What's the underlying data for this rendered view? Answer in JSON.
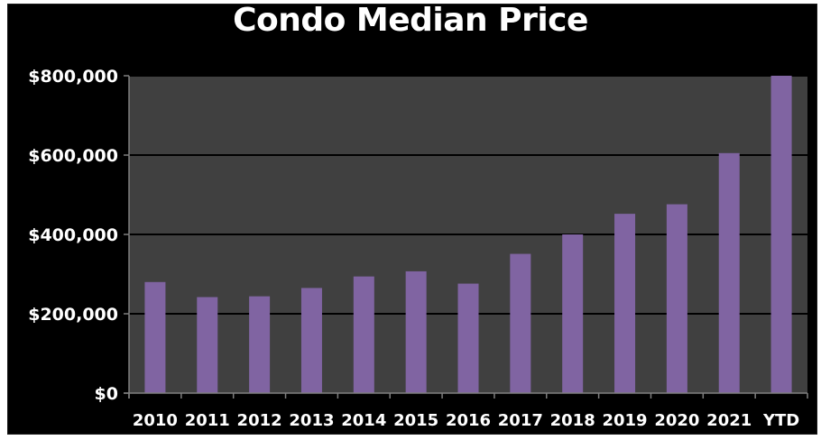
{
  "chart_data": {
    "type": "bar",
    "title": "Condo Median Price",
    "categories": [
      "2010",
      "2011",
      "2012",
      "2013",
      "2014",
      "2015",
      "2016",
      "2017",
      "2018",
      "2019",
      "2020",
      "2021",
      "YTD"
    ],
    "values": [
      280000,
      242000,
      244000,
      265000,
      294000,
      307000,
      276000,
      351000,
      400000,
      452000,
      476000,
      605000,
      800000
    ],
    "ylim": [
      0,
      800000
    ],
    "yticks": [
      "$0",
      "$200,000",
      "$400,000",
      "$600,000",
      "$800,000"
    ],
    "ytick_values": [
      0,
      200000,
      400000,
      600000,
      800000
    ],
    "grid": true,
    "legend": "none",
    "colors": {
      "bar": "#8064a2",
      "plot_background": "#404040",
      "chart_background": "#000000",
      "text": "#ffffff",
      "gridline": "#000000"
    }
  }
}
